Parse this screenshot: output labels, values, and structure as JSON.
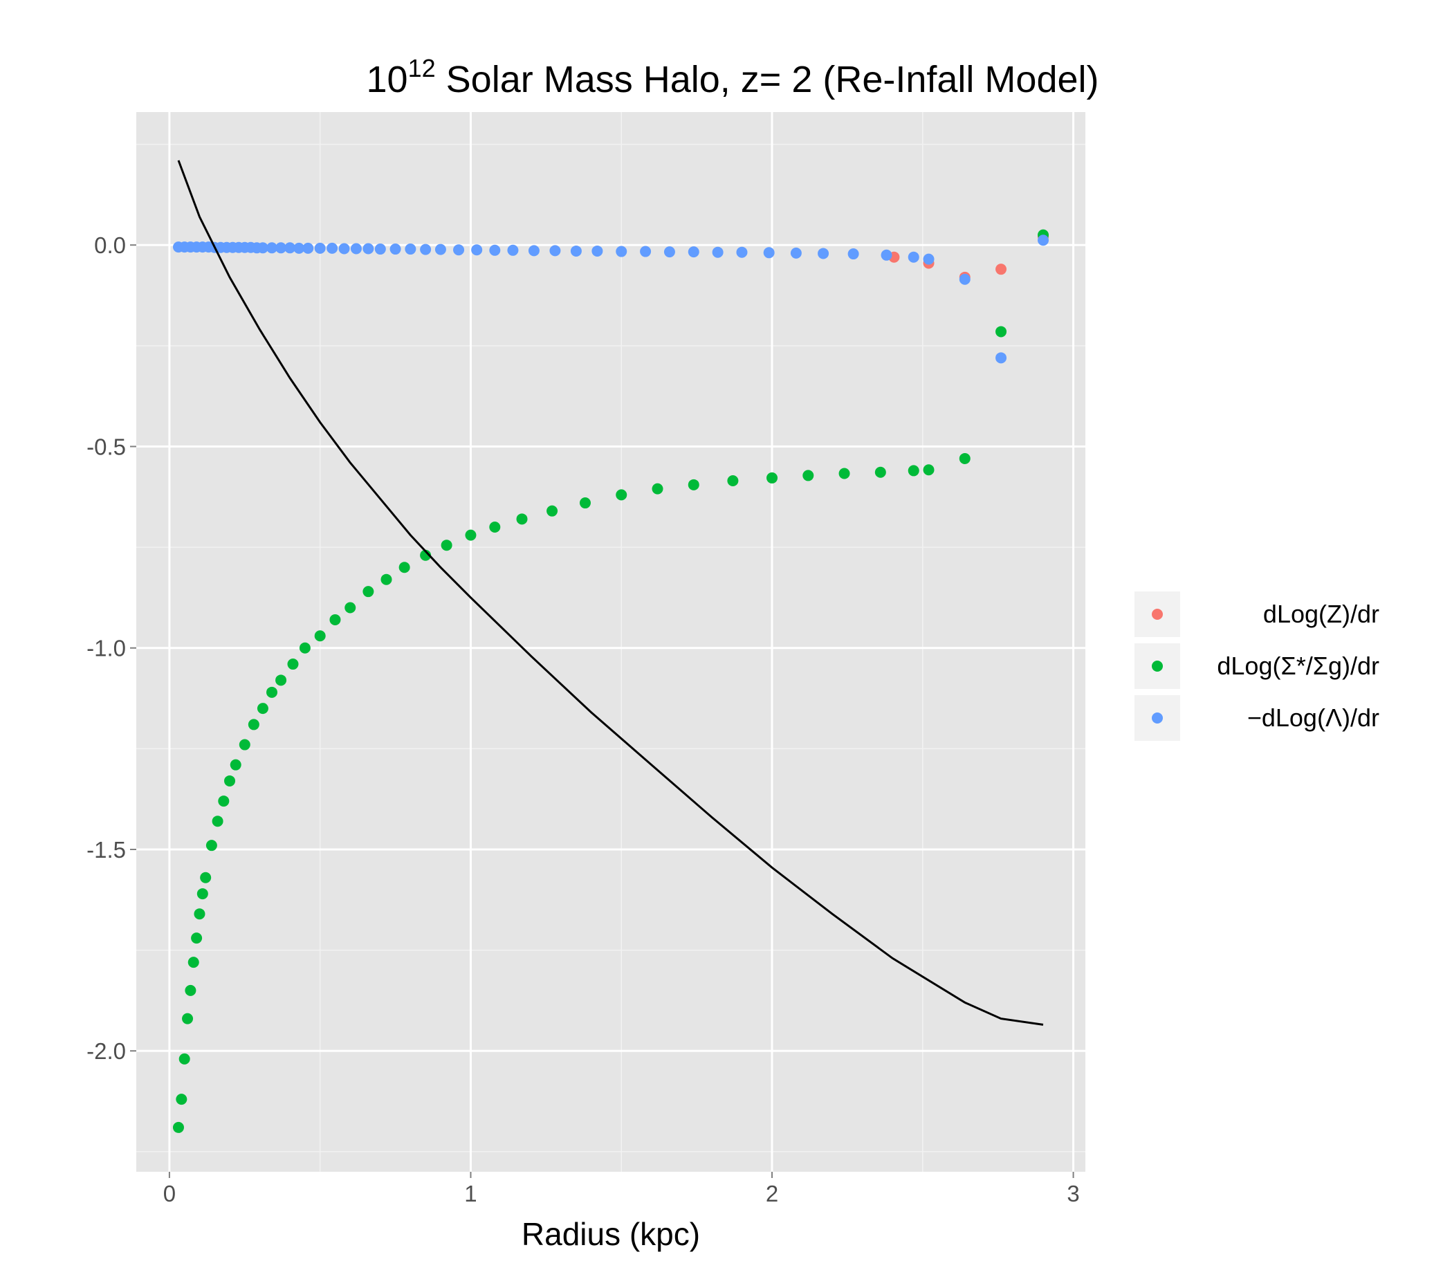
{
  "chart_data": {
    "type": "scatter",
    "title": "10^12 Solar Mass Halo, z= 2 (Re-Infall Model)",
    "title_parts": {
      "base": "10",
      "exponent": "12",
      "rest": " Solar Mass Halo, z= 2 (Re-Infall Model)"
    },
    "xlabel": "Radius (kpc)",
    "ylabel": "",
    "xlim": [
      -0.11,
      3.04
    ],
    "ylim": [
      -2.3,
      0.33
    ],
    "x_ticks": [
      0,
      1,
      2,
      3
    ],
    "y_ticks": [
      0.0,
      -0.5,
      -1.0,
      -1.5,
      -2.0
    ],
    "x_tick_labels": [
      "0",
      "1",
      "2",
      "3"
    ],
    "y_tick_labels": [
      "0.0",
      "-0.5",
      "-1.0",
      "-1.5",
      "-2.0"
    ],
    "grid": true,
    "legend_position": "right",
    "legend": [
      {
        "label": "dLog(Z)/dr",
        "color": "#F8766D"
      },
      {
        "label": "dLog(Σ*/Σg)/dr",
        "color": "#00BA38"
      },
      {
        "label": "−dLog(Λ)/dr",
        "color": "#619CFF"
      }
    ],
    "series": [
      {
        "name": "dLog(Z)/dr",
        "color": "#F8766D",
        "points": [
          [
            2.405,
            -0.03
          ],
          [
            2.52,
            -0.045
          ],
          [
            2.64,
            -0.08
          ],
          [
            2.76,
            -0.06
          ],
          [
            2.9,
            0.02
          ]
        ]
      },
      {
        "name": "dLog(Σ*/Σg)/dr",
        "color": "#00BA38",
        "points": [
          [
            0.03,
            -2.19
          ],
          [
            0.04,
            -2.12
          ],
          [
            0.05,
            -2.02
          ],
          [
            0.06,
            -1.92
          ],
          [
            0.07,
            -1.85
          ],
          [
            0.08,
            -1.78
          ],
          [
            0.09,
            -1.72
          ],
          [
            0.1,
            -1.66
          ],
          [
            0.11,
            -1.61
          ],
          [
            0.12,
            -1.57
          ],
          [
            0.14,
            -1.49
          ],
          [
            0.16,
            -1.43
          ],
          [
            0.18,
            -1.38
          ],
          [
            0.2,
            -1.33
          ],
          [
            0.22,
            -1.29
          ],
          [
            0.25,
            -1.24
          ],
          [
            0.28,
            -1.19
          ],
          [
            0.31,
            -1.15
          ],
          [
            0.34,
            -1.11
          ],
          [
            0.37,
            -1.08
          ],
          [
            0.41,
            -1.04
          ],
          [
            0.45,
            -1.0
          ],
          [
            0.5,
            -0.97
          ],
          [
            0.55,
            -0.93
          ],
          [
            0.6,
            -0.9
          ],
          [
            0.66,
            -0.86
          ],
          [
            0.72,
            -0.83
          ],
          [
            0.78,
            -0.8
          ],
          [
            0.85,
            -0.77
          ],
          [
            0.92,
            -0.745
          ],
          [
            1.0,
            -0.72
          ],
          [
            1.08,
            -0.7
          ],
          [
            1.17,
            -0.68
          ],
          [
            1.27,
            -0.66
          ],
          [
            1.38,
            -0.64
          ],
          [
            1.5,
            -0.62
          ],
          [
            1.62,
            -0.605
          ],
          [
            1.74,
            -0.595
          ],
          [
            1.87,
            -0.585
          ],
          [
            2.0,
            -0.578
          ],
          [
            2.12,
            -0.572
          ],
          [
            2.24,
            -0.567
          ],
          [
            2.36,
            -0.564
          ],
          [
            2.47,
            -0.56
          ],
          [
            2.52,
            -0.558
          ],
          [
            2.64,
            -0.53
          ],
          [
            2.76,
            -0.215
          ],
          [
            2.9,
            0.025
          ]
        ]
      },
      {
        "name": "−dLog(Λ)/dr",
        "color": "#619CFF",
        "points": [
          [
            0.03,
            -0.005
          ],
          [
            0.05,
            -0.005
          ],
          [
            0.07,
            -0.005
          ],
          [
            0.09,
            -0.005
          ],
          [
            0.11,
            -0.005
          ],
          [
            0.13,
            -0.005
          ],
          [
            0.15,
            -0.006
          ],
          [
            0.17,
            -0.006
          ],
          [
            0.19,
            -0.006
          ],
          [
            0.21,
            -0.006
          ],
          [
            0.23,
            -0.006
          ],
          [
            0.25,
            -0.006
          ],
          [
            0.27,
            -0.006
          ],
          [
            0.29,
            -0.007
          ],
          [
            0.31,
            -0.007
          ],
          [
            0.34,
            -0.007
          ],
          [
            0.37,
            -0.007
          ],
          [
            0.4,
            -0.007
          ],
          [
            0.43,
            -0.008
          ],
          [
            0.46,
            -0.008
          ],
          [
            0.5,
            -0.008
          ],
          [
            0.54,
            -0.008
          ],
          [
            0.58,
            -0.009
          ],
          [
            0.62,
            -0.009
          ],
          [
            0.66,
            -0.009
          ],
          [
            0.7,
            -0.01
          ],
          [
            0.75,
            -0.01
          ],
          [
            0.8,
            -0.01
          ],
          [
            0.85,
            -0.011
          ],
          [
            0.9,
            -0.011
          ],
          [
            0.96,
            -0.012
          ],
          [
            1.02,
            -0.012
          ],
          [
            1.08,
            -0.013
          ],
          [
            1.14,
            -0.013
          ],
          [
            1.21,
            -0.014
          ],
          [
            1.28,
            -0.014
          ],
          [
            1.35,
            -0.015
          ],
          [
            1.42,
            -0.015
          ],
          [
            1.5,
            -0.016
          ],
          [
            1.58,
            -0.016
          ],
          [
            1.66,
            -0.017
          ],
          [
            1.74,
            -0.017
          ],
          [
            1.82,
            -0.018
          ],
          [
            1.9,
            -0.018
          ],
          [
            1.99,
            -0.019
          ],
          [
            2.08,
            -0.02
          ],
          [
            2.17,
            -0.021
          ],
          [
            2.27,
            -0.022
          ],
          [
            2.38,
            -0.025
          ],
          [
            2.47,
            -0.03
          ],
          [
            2.52,
            -0.035
          ],
          [
            2.64,
            -0.085
          ],
          [
            2.76,
            -0.28
          ],
          [
            2.9,
            0.012
          ]
        ]
      }
    ],
    "line": {
      "color": "#000000",
      "points": [
        [
          0.03,
          0.21
        ],
        [
          0.1,
          0.07
        ],
        [
          0.2,
          -0.08
        ],
        [
          0.3,
          -0.21
        ],
        [
          0.4,
          -0.33
        ],
        [
          0.5,
          -0.44
        ],
        [
          0.6,
          -0.54
        ],
        [
          0.7,
          -0.63
        ],
        [
          0.8,
          -0.72
        ],
        [
          0.9,
          -0.8
        ],
        [
          1.0,
          -0.875
        ],
        [
          1.2,
          -1.02
        ],
        [
          1.4,
          -1.16
        ],
        [
          1.6,
          -1.29
        ],
        [
          1.8,
          -1.42
        ],
        [
          2.0,
          -1.545
        ],
        [
          2.2,
          -1.66
        ],
        [
          2.4,
          -1.77
        ],
        [
          2.64,
          -1.88
        ],
        [
          2.76,
          -1.92
        ],
        [
          2.9,
          -1.935
        ]
      ]
    }
  }
}
